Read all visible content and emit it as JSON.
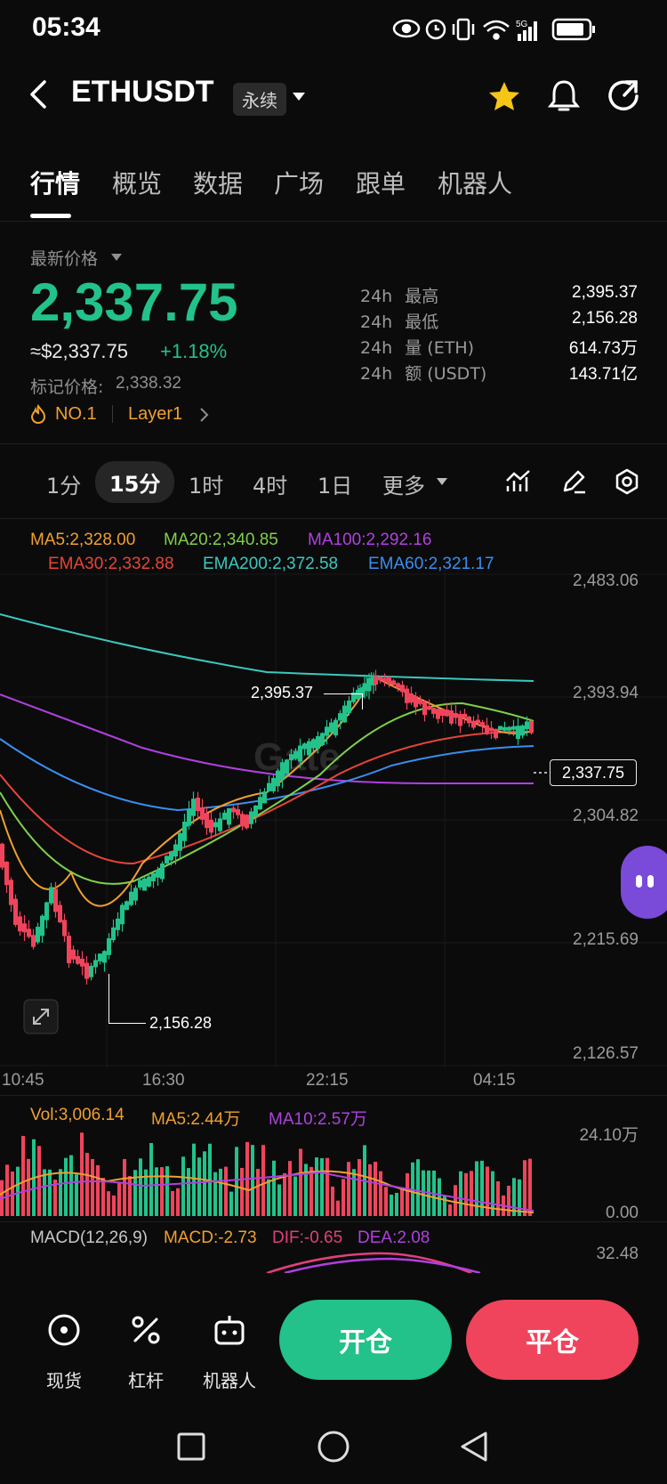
{
  "status_bar": {
    "time": "05:34",
    "network": "5G"
  },
  "header": {
    "symbol": "ETHUSDT",
    "contract_type": "永续"
  },
  "tabs": [
    {
      "label": "行情",
      "active": true
    },
    {
      "label": "概览"
    },
    {
      "label": "数据"
    },
    {
      "label": "广场"
    },
    {
      "label": "跟单"
    },
    {
      "label": "机器人"
    }
  ],
  "ticker": {
    "latest_label": "最新价格",
    "price": "2,337.75",
    "usd_price": "≈$2,337.75",
    "change": "+1.18%",
    "mark_price_label": "标记价格:",
    "mark_price": "2,338.32",
    "rank": "NO.1",
    "category": "Layer1",
    "stats": [
      {
        "prefix": "24h",
        "label": "最高",
        "value": "2,395.37"
      },
      {
        "prefix": "24h",
        "label": "最低",
        "value": "2,156.28"
      },
      {
        "prefix": "24h",
        "label": "量 (ETH)",
        "value": "614.73万"
      },
      {
        "prefix": "24h",
        "label": "额 (USDT)",
        "value": "143.71亿"
      }
    ]
  },
  "intervals": [
    {
      "label": "1分"
    },
    {
      "label": "15分",
      "active": true
    },
    {
      "label": "1时"
    },
    {
      "label": "4时"
    },
    {
      "label": "1日"
    },
    {
      "label": "更多"
    }
  ],
  "chart": {
    "indicators_line1": [
      {
        "text": "MA5:2,328.00",
        "color": "#f0a030"
      },
      {
        "text": "MA20:2,340.85",
        "color": "#7ed04a"
      },
      {
        "text": "MA100:2,292.16",
        "color": "#b040e0"
      }
    ],
    "indicators_line2": [
      {
        "text": "EMA30:2,332.88",
        "color": "#e8443a"
      },
      {
        "text": "EMA200:2,372.58",
        "color": "#3cc8c0"
      },
      {
        "text": "EMA60:2,321.17",
        "color": "#3a8ef0"
      }
    ],
    "y_ticks": [
      "2,483.06",
      "2,393.94",
      "2,304.82",
      "2,215.69",
      "2,126.57"
    ],
    "x_ticks": [
      "10:45",
      "16:30",
      "22:15",
      "04:15"
    ],
    "high_marker": "2,395.37",
    "low_marker": "2,156.28",
    "current_price": "2,337.75",
    "watermark": "Gate"
  },
  "volume": {
    "legend": [
      {
        "text": "Vol:3,006.14",
        "color": "#f0a030"
      },
      {
        "text": "MA5:2.44万",
        "color": "#f0a030"
      },
      {
        "text": "MA10:2.57万",
        "color": "#b040e0"
      }
    ],
    "y_ticks": [
      "24.10万",
      "0.00"
    ]
  },
  "macd": {
    "legend": [
      {
        "text": "MACD(12,26,9)",
        "color": "#c8c8c8"
      },
      {
        "text": "MACD:-2.73",
        "color": "#f0a030"
      },
      {
        "text": "DIF:-0.65",
        "color": "#e0407a"
      },
      {
        "text": "DEA:2.08",
        "color": "#b040e0"
      }
    ],
    "y_tick": "32.48"
  },
  "bottom_bar": {
    "tools": [
      {
        "label": "现货"
      },
      {
        "label": "杠杆"
      },
      {
        "label": "机器人"
      }
    ],
    "open_label": "开仓",
    "close_label": "平仓"
  },
  "colors": {
    "up": "#22c28a",
    "down": "#f0445c",
    "accent": "#f5c518"
  }
}
